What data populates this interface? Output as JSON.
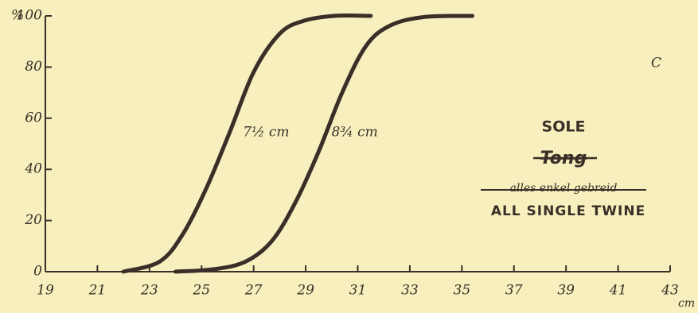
{
  "chart_data": {
    "type": "line",
    "x_label": "cm",
    "y_label": "%",
    "series": [
      {
        "name": "7½ cm",
        "color": "#3a2f28",
        "x": [
          22.0,
          23.4,
          24.3,
          25.2,
          26.1,
          27.0,
          28.0,
          28.9,
          30.1,
          31.5
        ],
        "values": [
          0,
          4,
          15,
          33,
          55,
          78,
          93,
          98,
          100,
          100
        ]
      },
      {
        "name": "8¾ cm",
        "color": "#3a2f28",
        "x": [
          24.0,
          25.5,
          26.7,
          27.7,
          28.6,
          29.5,
          30.4,
          31.3,
          32.2,
          33.5,
          35.4
        ],
        "values": [
          0,
          1,
          4,
          12,
          27,
          47,
          70,
          88,
          96,
          99.5,
          100
        ]
      }
    ],
    "xlim": [
      19,
      43
    ],
    "xticks": [
      19,
      21,
      23,
      25,
      27,
      29,
      31,
      33,
      35,
      37,
      39,
      41,
      43
    ],
    "ylim": [
      0,
      100
    ],
    "yticks": [
      0,
      20,
      40,
      60,
      80,
      100
    ],
    "annotations": {
      "panel": "C",
      "species": "SOLE",
      "species_struck": "Tong",
      "gear_struck": "alles enkel gebreid",
      "gear": "ALL SINGLE TWINE"
    }
  }
}
